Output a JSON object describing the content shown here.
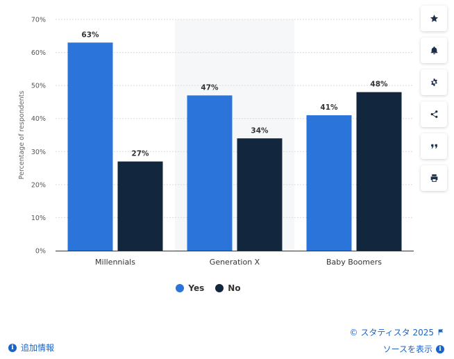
{
  "chart_data": {
    "type": "bar",
    "categories": [
      "Millennials",
      "Generation X",
      "Baby Boomers"
    ],
    "series": [
      {
        "name": "Yes",
        "values": [
          63,
          47,
          41
        ],
        "color": "#2b74d9"
      },
      {
        "name": "No",
        "values": [
          27,
          34,
          48
        ],
        "color": "#12263d"
      }
    ],
    "ylabel": "Percentage of respondents",
    "ylim": [
      0,
      70
    ],
    "yticks": [
      "0%",
      "10%",
      "20%",
      "30%",
      "40%",
      "50%",
      "60%",
      "70%"
    ],
    "value_suffix": "%",
    "grid": true,
    "legend": "bottom-center",
    "highlighted_category": "Generation X"
  },
  "toolbar": {
    "icons": [
      "star-icon",
      "bell-icon",
      "gear-icon",
      "share-icon",
      "quote-icon",
      "print-icon"
    ]
  },
  "footer": {
    "copyright": "© スタティスタ 2025",
    "more_info": "追加情報",
    "show_source": "ソースを表示"
  }
}
